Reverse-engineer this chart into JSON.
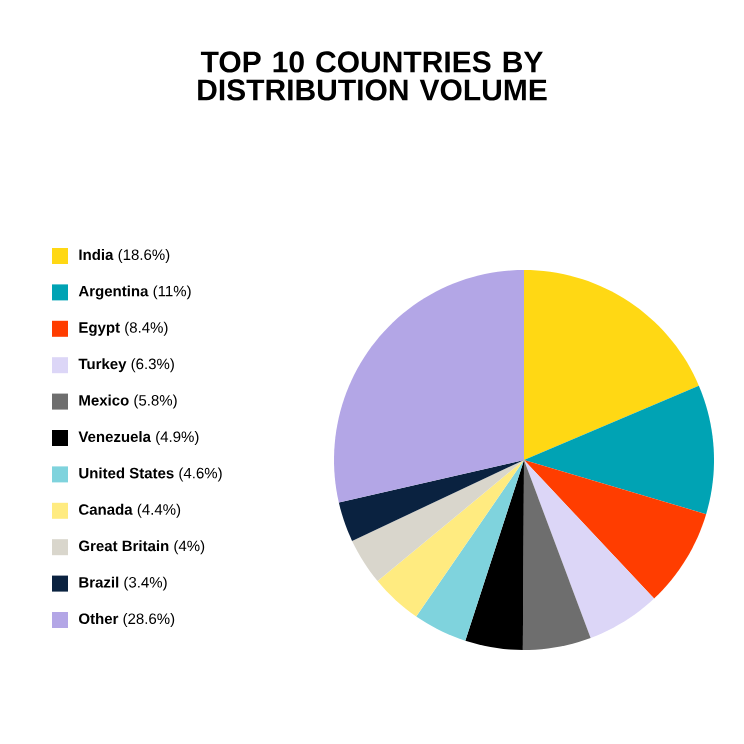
{
  "chart_data": {
    "type": "pie",
    "title": "TOP 10 COUNTRIES BY DISTRIBUTION VOLUME",
    "categories": [
      "**India** (18.6%)",
      "**Argentina** (11%)",
      "**Egypt** (8.4%)",
      "**Turkey** (6.3%)",
      "**Mexico** (5.8%)",
      "**Venezuela** (4.9%)",
      "**United States** (4.6%)",
      "**Canada** (4.4%)",
      "**Great Britain** (4%)",
      "**Brazil** (3.4%)",
      "**Other** (28.6%)"
    ],
    "values": [
      18.6,
      11,
      8.4,
      6.3,
      5.8,
      4.9,
      4.6,
      4.4,
      4,
      3.4,
      28.6
    ],
    "colors": [
      "#ffd814",
      "#00a3b4",
      "#ff3d00",
      "#dcd6f7",
      "#6e6e6e",
      "#000000",
      "#7fd3dd",
      "#ffeb80",
      "#d9d6cc",
      "#0a2240",
      "#b3a6e6"
    ],
    "legend": "left"
  }
}
